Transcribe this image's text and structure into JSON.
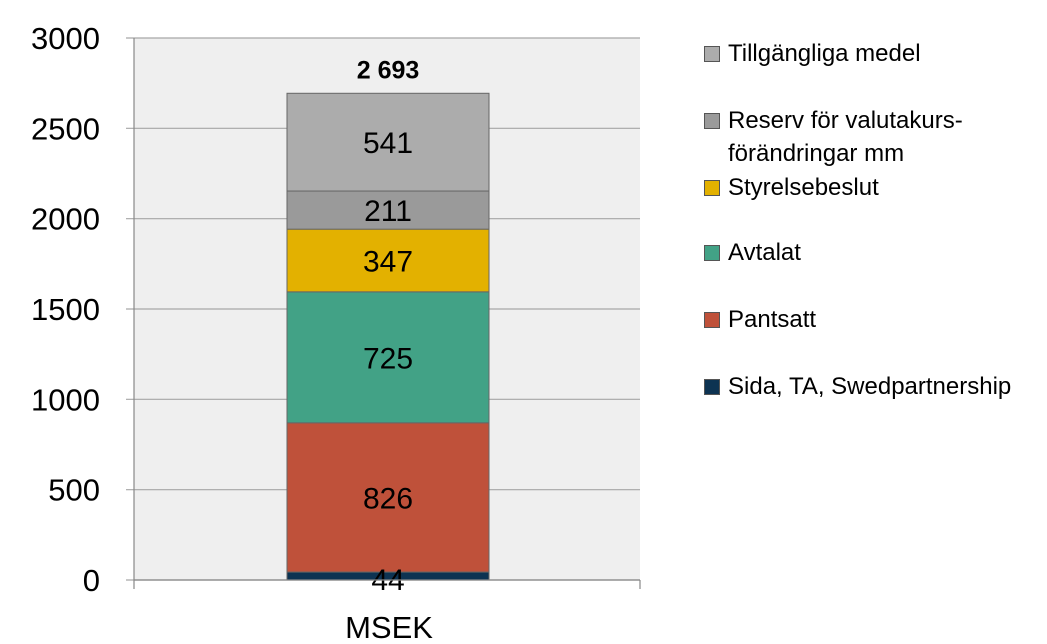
{
  "chart_data": {
    "type": "stacked-bar",
    "categories": [
      "MSEK"
    ],
    "ylim": [
      0,
      3000
    ],
    "yticks": [
      0,
      500,
      1000,
      1500,
      2000,
      2500,
      3000
    ],
    "grid": true,
    "legend_position": "right",
    "total_label": "2 693",
    "series": [
      {
        "name": "Sida, TA, Swedpartnership",
        "values": [
          44
        ],
        "label": "44",
        "color": "#0d3352"
      },
      {
        "name": "Pantsatt",
        "values": [
          826
        ],
        "label": "826",
        "color": "#bf513a"
      },
      {
        "name": "Avtalat",
        "values": [
          725
        ],
        "label": "725",
        "color": "#42a286"
      },
      {
        "name": "Styrelsebeslut",
        "values": [
          347
        ],
        "label": "347",
        "color": "#e3b100"
      },
      {
        "name": "Reserv för valutakurs-förändringar mm",
        "values": [
          211
        ],
        "label": "211",
        "color": "#9a9a9a"
      },
      {
        "name": "Tillgängliga medel",
        "values": [
          541
        ],
        "label": "541",
        "color": "#acacac"
      }
    ],
    "legend": [
      {
        "label": "Tillgängliga medel",
        "color": "#acacac"
      },
      {
        "label": "Reserv för valutakurs-förändringar mm",
        "color": "#9a9a9a"
      },
      {
        "label": "Styrelsebeslut",
        "color": "#e3b100"
      },
      {
        "label": "Avtalat",
        "color": "#42a286"
      },
      {
        "label": "Pantsatt",
        "color": "#bf513a"
      },
      {
        "label": "Sida, TA, Swedpartnership",
        "color": "#0d3352"
      }
    ],
    "plot_background": "#efefef",
    "grid_color": "#a6a6a6"
  }
}
